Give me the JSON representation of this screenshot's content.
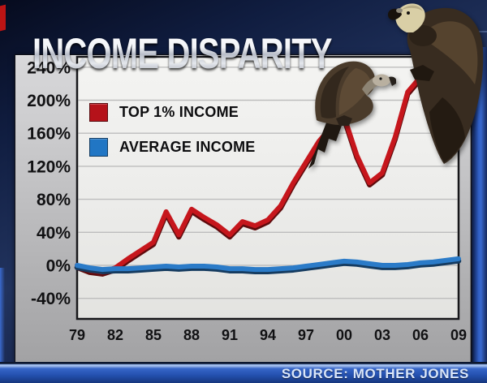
{
  "title": "INCOME DISPARITY",
  "source": "SOURCE: MOTHER JONES",
  "colors": {
    "top1_red": "#c6161c",
    "average_blue": "#2b7bc8",
    "legend_red": "#b5121a",
    "legend_blue": "#2176c4",
    "frame_navy": "#101d40",
    "panel_silver": "#c6c6c8",
    "bottom_bar_blue": "#2451b0"
  },
  "legend": [
    {
      "label": "TOP 1% INCOME",
      "color": "#b5121a"
    },
    {
      "label": "AVERAGE INCOME",
      "color": "#2176c4"
    }
  ],
  "decor": {
    "vulture_1": "vulture perched on year-2000 peak of red line",
    "vulture_2": "vulture perched on year-2007 end of red line"
  },
  "chart_data": {
    "type": "line",
    "title": "INCOME DISPARITY",
    "xlabel": "",
    "ylabel": "",
    "xlim": [
      1979,
      2009
    ],
    "ylim": [
      -60,
      250
    ],
    "grid": "horizontal",
    "legend_position": "upper-left",
    "xticks": [
      1979,
      1982,
      1985,
      1988,
      1991,
      1994,
      1997,
      2000,
      2003,
      2006,
      2009
    ],
    "xtick_labels": [
      "79",
      "82",
      "85",
      "88",
      "91",
      "94",
      "97",
      "00",
      "03",
      "06",
      "09"
    ],
    "yticks": [
      240,
      200,
      160,
      120,
      80,
      40,
      0,
      -40
    ],
    "ytick_labels": [
      "240%",
      "200%",
      "160%",
      "120%",
      "80%",
      "40%",
      "0%",
      "-40%"
    ],
    "series": [
      {
        "name": "TOP 1% INCOME",
        "color": "#c6161c",
        "x": [
          1979,
          1980,
          1981,
          1982,
          1983,
          1984,
          1985,
          1986,
          1987,
          1988,
          1989,
          1990,
          1991,
          1992,
          1993,
          1994,
          1995,
          1996,
          1997,
          1998,
          1999,
          2000,
          2001,
          2002,
          2003,
          2004,
          2005,
          2006,
          2007
        ],
        "values": [
          0,
          -6,
          -8,
          -3,
          8,
          18,
          28,
          65,
          37,
          68,
          58,
          49,
          37,
          53,
          48,
          55,
          72,
          100,
          125,
          150,
          168,
          180,
          133,
          100,
          112,
          155,
          210,
          228,
          238
        ]
      },
      {
        "name": "AVERAGE INCOME",
        "color": "#2b7bc8",
        "x": [
          1979,
          1980,
          1981,
          1982,
          1983,
          1984,
          1985,
          1986,
          1987,
          1988,
          1989,
          1990,
          1991,
          1992,
          1993,
          1994,
          1995,
          1996,
          1997,
          1998,
          1999,
          2000,
          2001,
          2002,
          2003,
          2004,
          2005,
          2006,
          2007,
          2008,
          2009
        ],
        "values": [
          0,
          -3,
          -5,
          -4,
          -4,
          -3,
          -2,
          -1,
          -2,
          -1,
          -1,
          -2,
          -4,
          -4,
          -5,
          -5,
          -4,
          -3,
          -1,
          1,
          3,
          5,
          4,
          2,
          0,
          0,
          1,
          3,
          4,
          6,
          8
        ]
      }
    ]
  }
}
